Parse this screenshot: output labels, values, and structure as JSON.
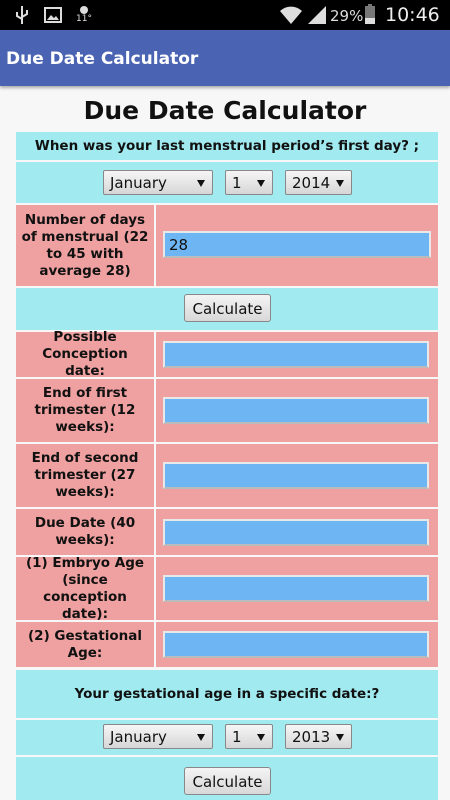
{
  "status_bar": {
    "temperature": "11°",
    "battery": "29%",
    "time": "10:46"
  },
  "app_bar": {
    "title": "Due Date Calculator"
  },
  "heading": "Due Date Calculator",
  "form": {
    "period_prompt": "When was your last menstrual period’s first day? ;",
    "period_date": {
      "month": "January",
      "day": "1",
      "year": "2014"
    },
    "cycle_label": "Number of days of menstrual (22 to 45 with average 28)",
    "cycle_value": "28",
    "calculate_button": "Calculate",
    "results": [
      "Possible Conception date:",
      "End of first trimester (12 weeks):",
      "End of second trimester (27 weeks):",
      "Due Date (40 weeks):",
      "(1) Embryo Age (since conception date):",
      "(2) Gestational Age:"
    ]
  },
  "specific_date": {
    "prompt": "Your gestational age in a specific date:?",
    "date": {
      "month": "January",
      "day": "1",
      "year": "2013"
    },
    "calculate_button": "Calculate"
  }
}
